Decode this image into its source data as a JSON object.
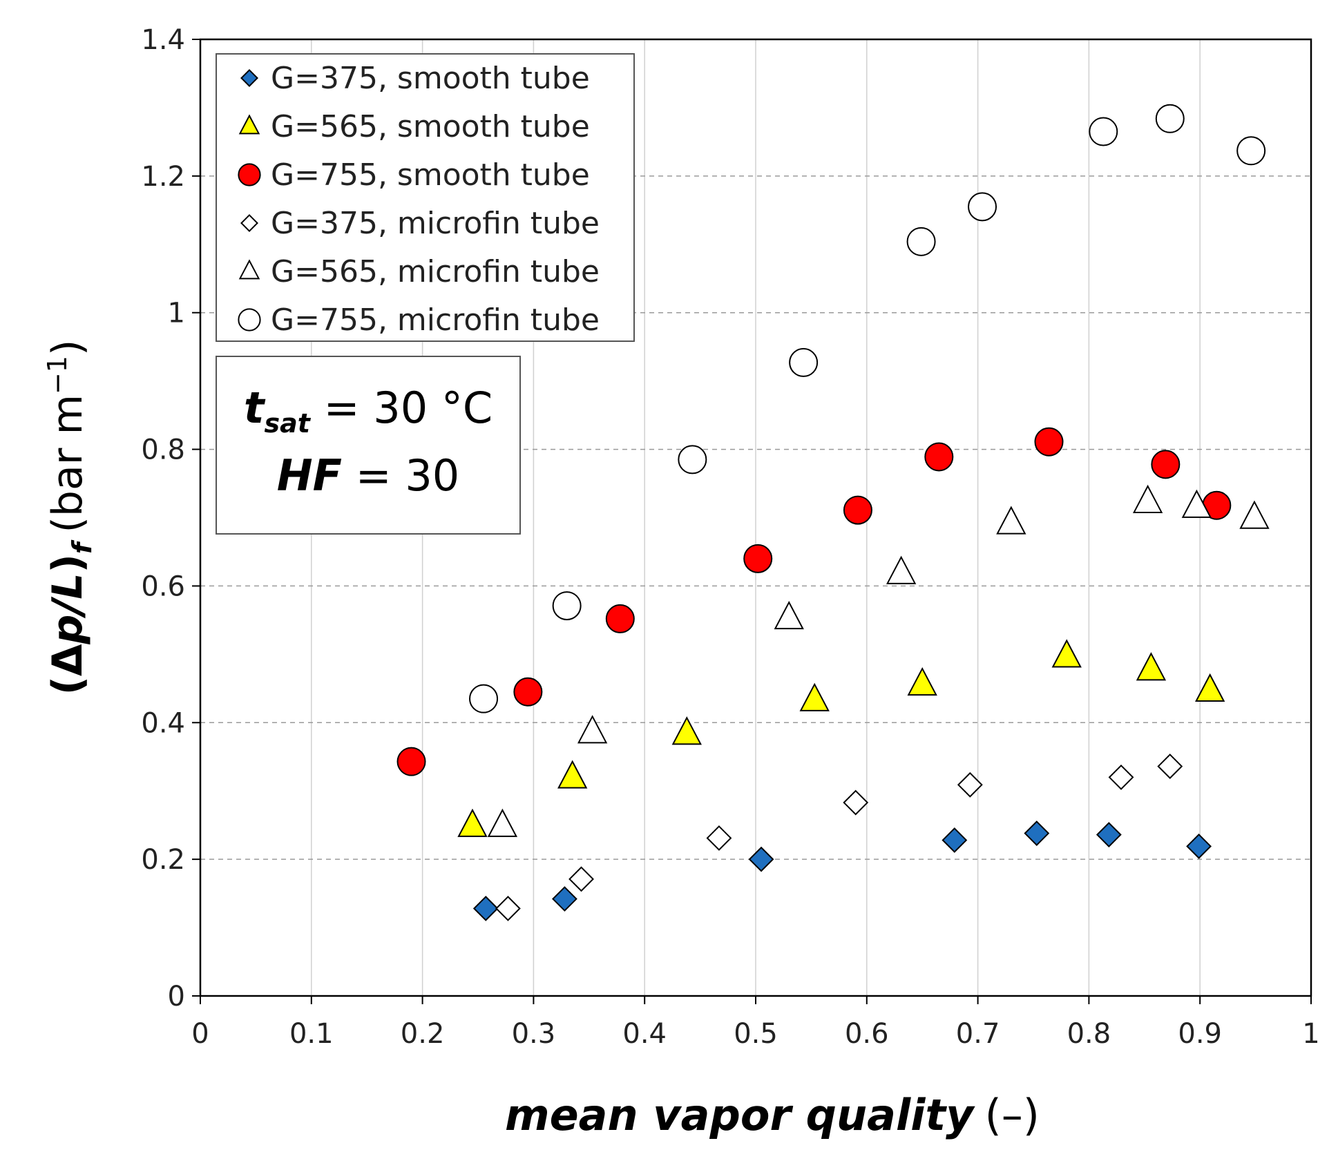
{
  "chart_data": {
    "type": "scatter",
    "title": "",
    "xlabel": "mean vapor quality",
    "xlabel_unit": "(–)",
    "ylabel_parts": {
      "open": "(",
      "delta": "Δ",
      "var": "p/L",
      "close": ")",
      "sub": "f",
      "unit": "(bar m",
      "unit_exp": "−1",
      "unit_close": ")"
    },
    "xlim": [
      0,
      1
    ],
    "ylim": [
      0,
      1.4
    ],
    "xticks": [
      0,
      0.1,
      0.2,
      0.3,
      0.4,
      0.5,
      0.6,
      0.7,
      0.8,
      0.9,
      1
    ],
    "xtick_labels": [
      "0",
      "0.1",
      "0.2",
      "0.3",
      "0.4",
      "0.5",
      "0.6",
      "0.7",
      "0.8",
      "0.9",
      "1"
    ],
    "yticks": [
      0,
      0.2,
      0.4,
      0.6,
      0.8,
      1,
      1.2,
      1.4
    ],
    "ytick_labels": [
      "0",
      "0.2",
      "0.4",
      "0.6",
      "0.8",
      "1",
      "1.2",
      "1.4"
    ],
    "grid": "vertical solid, horizontal dashed",
    "legend_position": "top-left",
    "series": [
      {
        "name": "G=375, smooth tube",
        "marker": "diamond",
        "fill": "#1f6fbf",
        "x": [
          0.257,
          0.328,
          0.505,
          0.679,
          0.753,
          0.818,
          0.899
        ],
        "y": [
          0.128,
          0.142,
          0.2,
          0.228,
          0.238,
          0.236,
          0.219
        ]
      },
      {
        "name": "G=565, smooth tube",
        "marker": "triangle",
        "fill": "#ffff00",
        "x": [
          0.245,
          0.335,
          0.438,
          0.553,
          0.65,
          0.78,
          0.856,
          0.909
        ],
        "y": [
          0.249,
          0.32,
          0.384,
          0.433,
          0.456,
          0.497,
          0.478,
          0.447
        ]
      },
      {
        "name": "G=755, smooth tube",
        "marker": "circle",
        "fill": "#ff0000",
        "x": [
          0.19,
          0.295,
          0.378,
          0.502,
          0.592,
          0.665,
          0.764,
          0.869,
          0.915
        ],
        "y": [
          0.343,
          0.445,
          0.552,
          0.64,
          0.711,
          0.789,
          0.811,
          0.778,
          0.718
        ]
      },
      {
        "name": "G=375, microfin tube",
        "marker": "diamond",
        "fill": "#ffffff",
        "x": [
          0.277,
          0.343,
          0.467,
          0.59,
          0.693,
          0.829,
          0.873
        ],
        "y": [
          0.128,
          0.171,
          0.231,
          0.283,
          0.309,
          0.32,
          0.336
        ]
      },
      {
        "name": "G=565, microfin tube",
        "marker": "triangle",
        "fill": "#ffffff",
        "x": [
          0.272,
          0.353,
          0.53,
          0.631,
          0.73,
          0.853,
          0.897,
          0.949
        ],
        "y": [
          0.249,
          0.386,
          0.553,
          0.619,
          0.692,
          0.723,
          0.716,
          0.7
        ]
      },
      {
        "name": "G=755, microfin tube",
        "marker": "circle",
        "fill": "#ffffff",
        "x": [
          0.255,
          0.33,
          0.443,
          0.543,
          0.649,
          0.704,
          0.813,
          0.873,
          0.946
        ],
        "y": [
          0.435,
          0.571,
          0.785,
          0.927,
          1.104,
          1.155,
          1.265,
          1.284,
          1.237
        ]
      }
    ],
    "annotation": {
      "line1_var": "t",
      "line1_sub": "sat",
      "line1_rest": " = 30 °C",
      "line2_var": "HF",
      "line2_rest": " = 30"
    }
  }
}
